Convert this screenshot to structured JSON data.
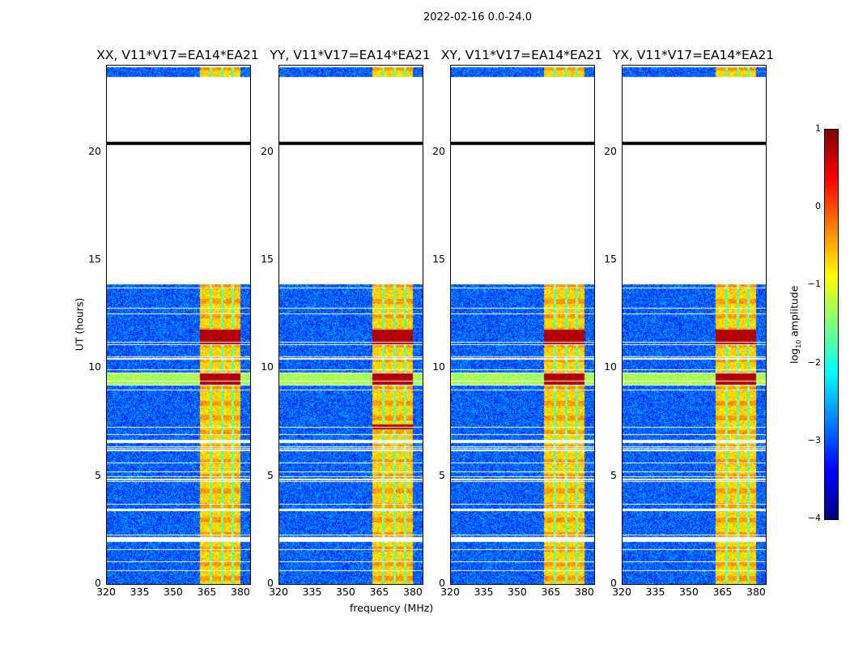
{
  "chart_data": {
    "type": "heatmap",
    "title": "2022-02-16 0.0-24.0",
    "xlabel": "frequency (MHz)",
    "ylabel": "UT (hours)",
    "xlim": [
      320,
      384
    ],
    "ylim": [
      0,
      24
    ],
    "xticks": [
      "320",
      "335",
      "350",
      "365",
      "380"
    ],
    "xtick_values": [
      320,
      335,
      350,
      365,
      380
    ],
    "yticks": [
      "0",
      "5",
      "10",
      "15",
      "20"
    ],
    "ytick_values": [
      0,
      5,
      10,
      15,
      20
    ],
    "panels": [
      {
        "title": "XX, V11*V17=EA14*EA21"
      },
      {
        "title": "YY, V11*V17=EA14*EA21"
      },
      {
        "title": "XY, V11*V17=EA14*EA21"
      },
      {
        "title": "YX, V11*V17=EA14*EA21"
      }
    ],
    "data_time_ranges_hours": [
      [
        0,
        2.0
      ],
      [
        2.2,
        3.4
      ],
      [
        3.5,
        6.6
      ],
      [
        6.7,
        13.9
      ],
      [
        23.5,
        24
      ]
    ],
    "flagged_line_hours": 20.4,
    "bright_band_mhz": [
      361.5,
      381
    ],
    "strong_rfi_hours": [
      [
        9.2,
        9.8
      ],
      [
        11.1,
        11.8
      ],
      [
        7.2,
        7.4
      ]
    ],
    "background_log10_amplitude": -2.9,
    "band_log10_amplitude": -0.8,
    "colorbar": {
      "label": "log10 amplitude",
      "label_main": "log",
      "label_sub": "10",
      "label_rest": " amplitude",
      "range": [
        -4,
        1
      ],
      "ticks": [
        "1",
        "0",
        "−1",
        "−2",
        "−3",
        "−4"
      ],
      "tick_values": [
        1,
        0,
        -1,
        -2,
        -3,
        -4
      ],
      "colormap": "jet"
    }
  }
}
